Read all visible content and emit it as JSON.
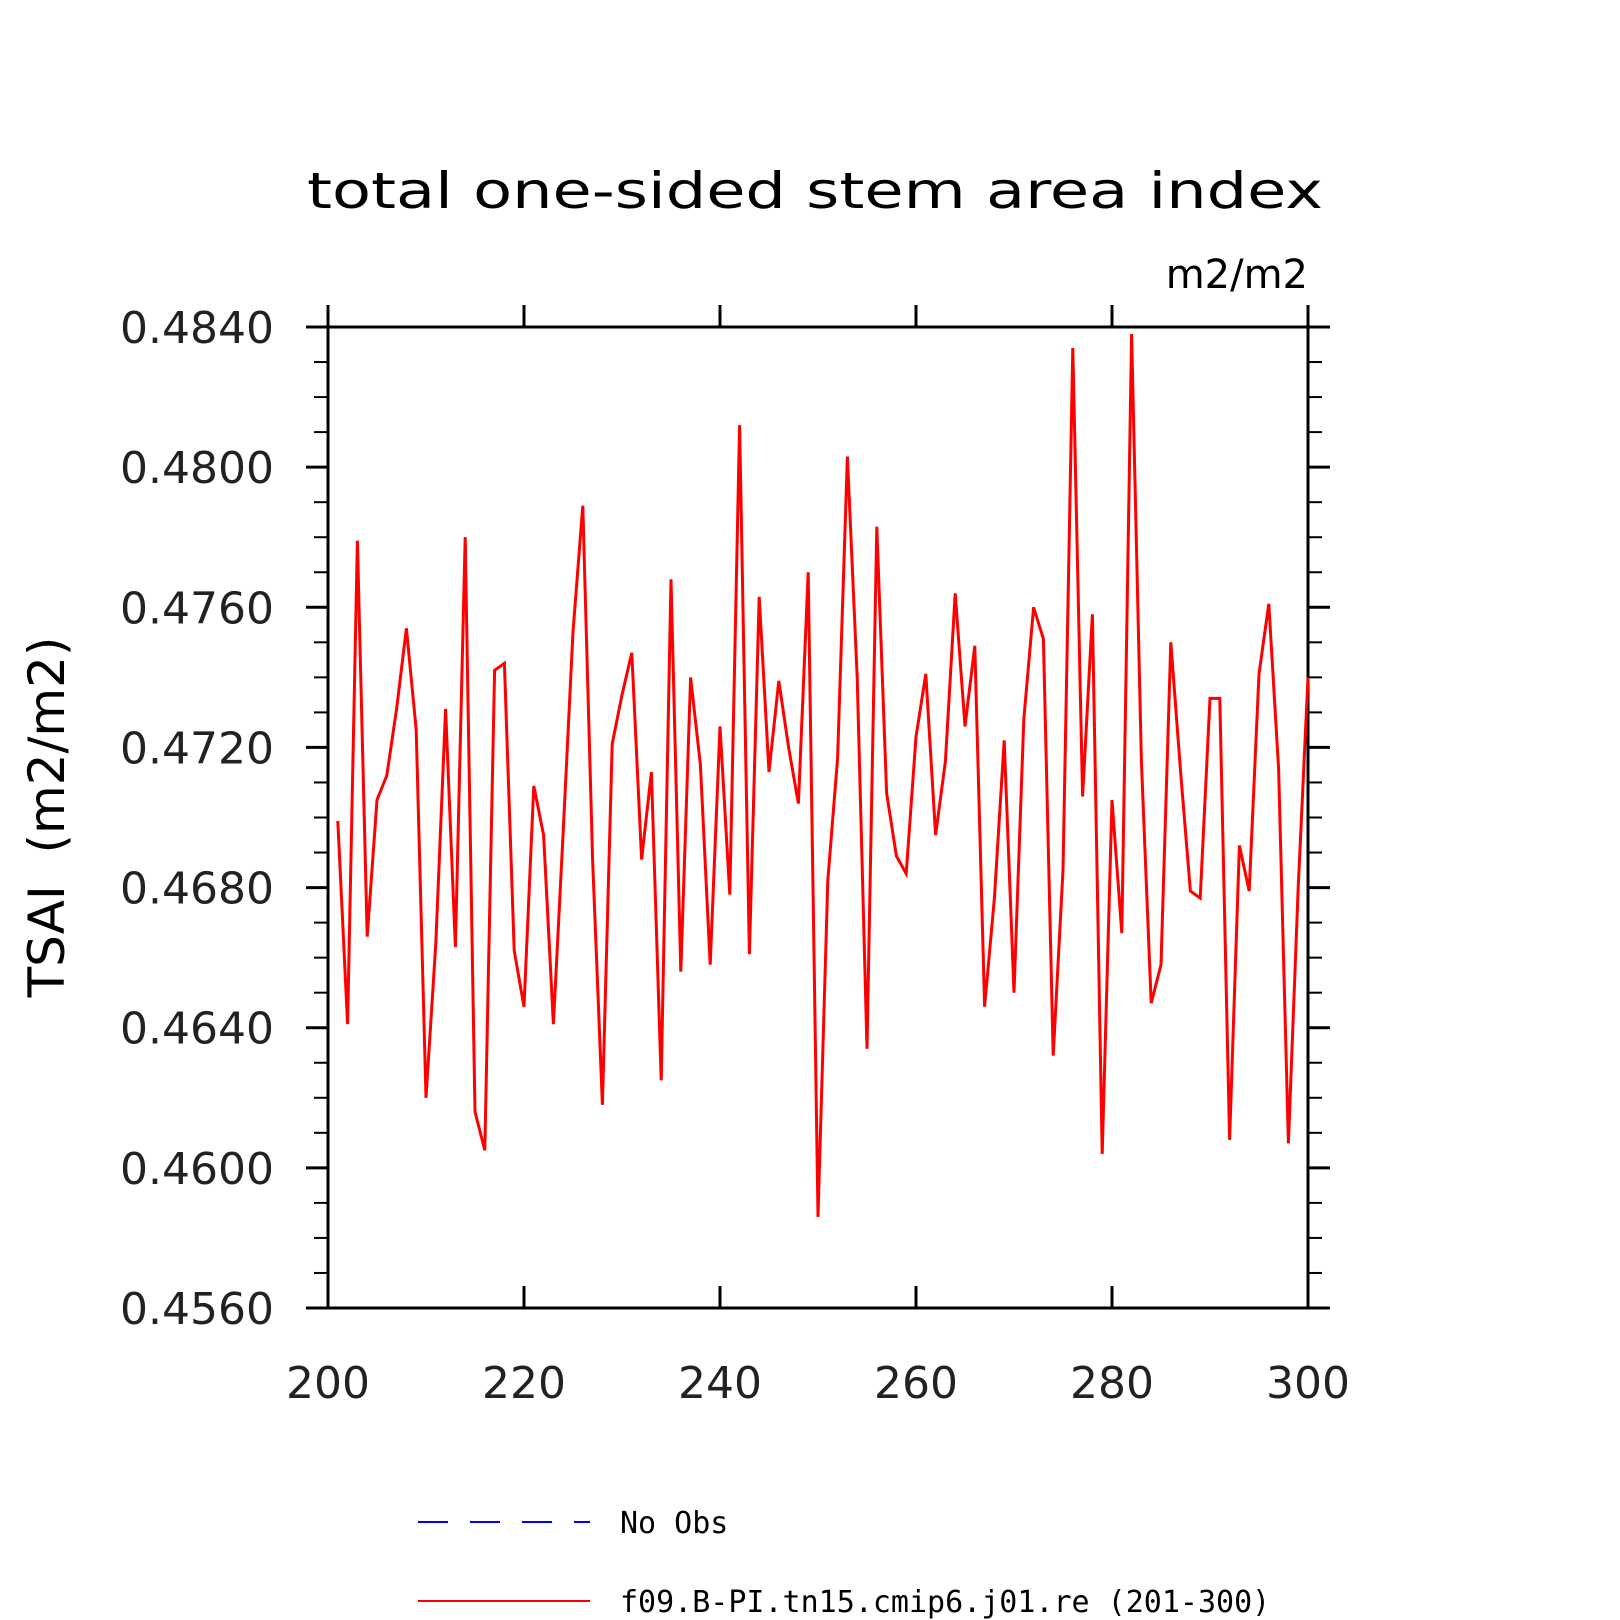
{
  "chart_data": {
    "type": "line",
    "title": "total one-sided stem area index",
    "subtitle": "m2/m2",
    "xlabel": "",
    "ylabel": "TSAI  (m2/m2)",
    "xlim": [
      200,
      300
    ],
    "ylim": [
      0.456,
      0.484
    ],
    "x_ticks": [
      200,
      220,
      240,
      260,
      280,
      300
    ],
    "x_tick_labels": [
      "200",
      "220",
      "240",
      "260",
      "280",
      "300"
    ],
    "y_ticks": [
      0.456,
      0.46,
      0.464,
      0.468,
      0.472,
      0.476,
      0.48,
      0.484
    ],
    "y_tick_labels": [
      "0.4560",
      "0.4600",
      "0.4640",
      "0.4680",
      "0.4720",
      "0.4760",
      "0.4800",
      "0.4840"
    ],
    "grid": false,
    "legend_position": "bottom",
    "series": [
      {
        "name": "No Obs",
        "color": "#0000ff",
        "dash": "dashed",
        "x": [],
        "values": []
      },
      {
        "name": "f09.B-PI.tn15.cmip6.j01.re (201-300)",
        "color": "#ff0000",
        "dash": "solid",
        "x": [
          201,
          202,
          203,
          204,
          205,
          206,
          207,
          208,
          209,
          210,
          211,
          212,
          213,
          214,
          215,
          216,
          217,
          218,
          219,
          220,
          221,
          222,
          223,
          224,
          225,
          226,
          227,
          228,
          229,
          230,
          231,
          232,
          233,
          234,
          235,
          236,
          237,
          238,
          239,
          240,
          241,
          242,
          243,
          244,
          245,
          246,
          247,
          248,
          249,
          250,
          251,
          252,
          253,
          254,
          255,
          256,
          257,
          258,
          259,
          260,
          261,
          262,
          263,
          264,
          265,
          266,
          267,
          268,
          269,
          270,
          271,
          272,
          273,
          274,
          275,
          276,
          277,
          278,
          279,
          280,
          281,
          282,
          283,
          284,
          285,
          286,
          287,
          288,
          289,
          290,
          291,
          292,
          293,
          294,
          295,
          296,
          297,
          298,
          299,
          300
        ],
        "values": [
          0.4699,
          0.4641,
          0.4779,
          0.4666,
          0.4705,
          0.4712,
          0.4731,
          0.4754,
          0.4725,
          0.462,
          0.4664,
          0.4731,
          0.4663,
          0.478,
          0.4616,
          0.4605,
          0.4742,
          0.4744,
          0.4662,
          0.4646,
          0.4709,
          0.4695,
          0.4641,
          0.4696,
          0.4753,
          0.4789,
          0.4688,
          0.4618,
          0.4721,
          0.4735,
          0.4747,
          0.4688,
          0.4713,
          0.4625,
          0.4768,
          0.4656,
          0.474,
          0.4715,
          0.4658,
          0.4726,
          0.4678,
          0.4812,
          0.4661,
          0.4763,
          0.4713,
          0.4739,
          0.472,
          0.4704,
          0.477,
          0.4586,
          0.4682,
          0.4717,
          0.4803,
          0.474,
          0.4634,
          0.4783,
          0.4707,
          0.4689,
          0.4684,
          0.4723,
          0.4741,
          0.4695,
          0.4716,
          0.4764,
          0.4726,
          0.4749,
          0.4646,
          0.4677,
          0.4722,
          0.465,
          0.4728,
          0.476,
          0.4751,
          0.4632,
          0.4685,
          0.4834,
          0.4706,
          0.4758,
          0.4604,
          0.4705,
          0.4667,
          0.4838,
          0.4716,
          0.4647,
          0.4658,
          0.475,
          0.4713,
          0.4679,
          0.4677,
          0.4734,
          0.4734,
          0.4608,
          0.4692,
          0.4679,
          0.4741,
          0.4761,
          0.4714,
          0.4607,
          0.468,
          0.474
        ]
      }
    ]
  }
}
